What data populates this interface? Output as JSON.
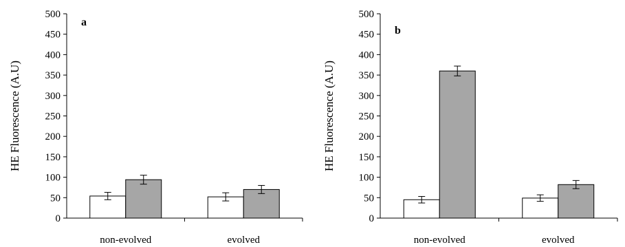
{
  "chart_data": [
    {
      "type": "bar",
      "title": "",
      "panel_label": "a",
      "ylabel": "HE Fluorescence (A.U)",
      "xlabel": "",
      "categories": [
        "non-evolved",
        "evolved"
      ],
      "ylim": [
        0,
        500
      ],
      "yticks": [
        "0",
        "50",
        "100",
        "150",
        "200",
        "250",
        "300",
        "350",
        "400",
        "450",
        "500"
      ],
      "series": [
        {
          "color": "#ffffff",
          "values": [
            54,
            52
          ],
          "errors": [
            9,
            10
          ]
        },
        {
          "color": "#a6a6a6",
          "values": [
            94,
            70
          ],
          "errors": [
            11,
            10
          ]
        }
      ],
      "grid": false,
      "legend": "none"
    },
    {
      "type": "bar",
      "title": "",
      "panel_label": "b",
      "ylabel": "HE Fluorescence (A.U)",
      "xlabel": "",
      "categories": [
        "non-evolved",
        "evolved"
      ],
      "ylim": [
        0,
        500
      ],
      "yticks": [
        "0",
        "50",
        "100",
        "150",
        "200",
        "250",
        "300",
        "350",
        "400",
        "450",
        "500"
      ],
      "series": [
        {
          "color": "#ffffff",
          "values": [
            45,
            49
          ],
          "errors": [
            8,
            8
          ]
        },
        {
          "color": "#a6a6a6",
          "values": [
            360,
            82
          ],
          "errors": [
            12,
            10
          ]
        }
      ],
      "grid": false,
      "legend": "none"
    }
  ]
}
